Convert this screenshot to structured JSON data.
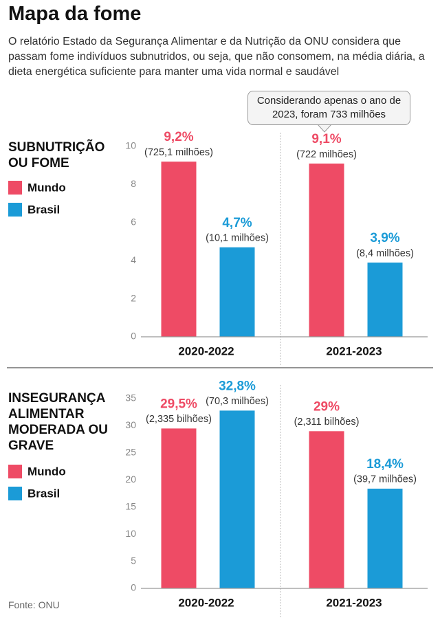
{
  "title": "Mapa da fome",
  "subtitle": "O relatório Estado da Segurança Alimentar e da Nutrição da ONU considera que passam fome indivíduos subnutridos, ou seja, que não consomem, na média diária, a dieta energética suficiente para manter uma vida normal e saudável",
  "source": "Fonte: ONU",
  "chart_data": [
    {
      "type": "bar",
      "title": "SUBNUTRIÇÃO OU FOME",
      "categories": [
        "2020-2022",
        "2021-2023"
      ],
      "series": [
        {
          "name": "Mundo",
          "color": "#ee4b65",
          "values": [
            9.2,
            9.1
          ],
          "value_labels": [
            "9,2%",
            "9,1%"
          ],
          "count_labels": [
            "(725,1 milhões)",
            "(722 milhões)"
          ]
        },
        {
          "name": "Brasil",
          "color": "#1b9bd7",
          "values": [
            4.7,
            3.9
          ],
          "value_labels": [
            "4,7%",
            "3,9%"
          ],
          "count_labels": [
            "(10,1 milhões)",
            "(8,4 milhões)"
          ]
        }
      ],
      "ylim": [
        0,
        10
      ],
      "yticks": [
        0,
        2,
        4,
        6,
        8,
        10
      ],
      "annotation": "Considerando apenas o ano de 2023, foram 733 milhões"
    },
    {
      "type": "bar",
      "title": "INSEGURANÇA ALIMENTAR MODERADA OU GRAVE",
      "categories": [
        "2020-2022",
        "2021-2023"
      ],
      "series": [
        {
          "name": "Mundo",
          "color": "#ee4b65",
          "values": [
            29.5,
            29
          ],
          "value_labels": [
            "29,5%",
            "29%"
          ],
          "count_labels": [
            "(2,335 bilhões)",
            "(2,311 bilhões)"
          ]
        },
        {
          "name": "Brasil",
          "color": "#1b9bd7",
          "values": [
            32.8,
            18.4
          ],
          "value_labels": [
            "32,8%",
            "18,4%"
          ],
          "count_labels": [
            "(70,3 milhões)",
            "(39,7 milhões)"
          ]
        }
      ],
      "ylim": [
        0,
        35
      ],
      "yticks": [
        0,
        5,
        10,
        15,
        20,
        25,
        30,
        35
      ]
    }
  ]
}
